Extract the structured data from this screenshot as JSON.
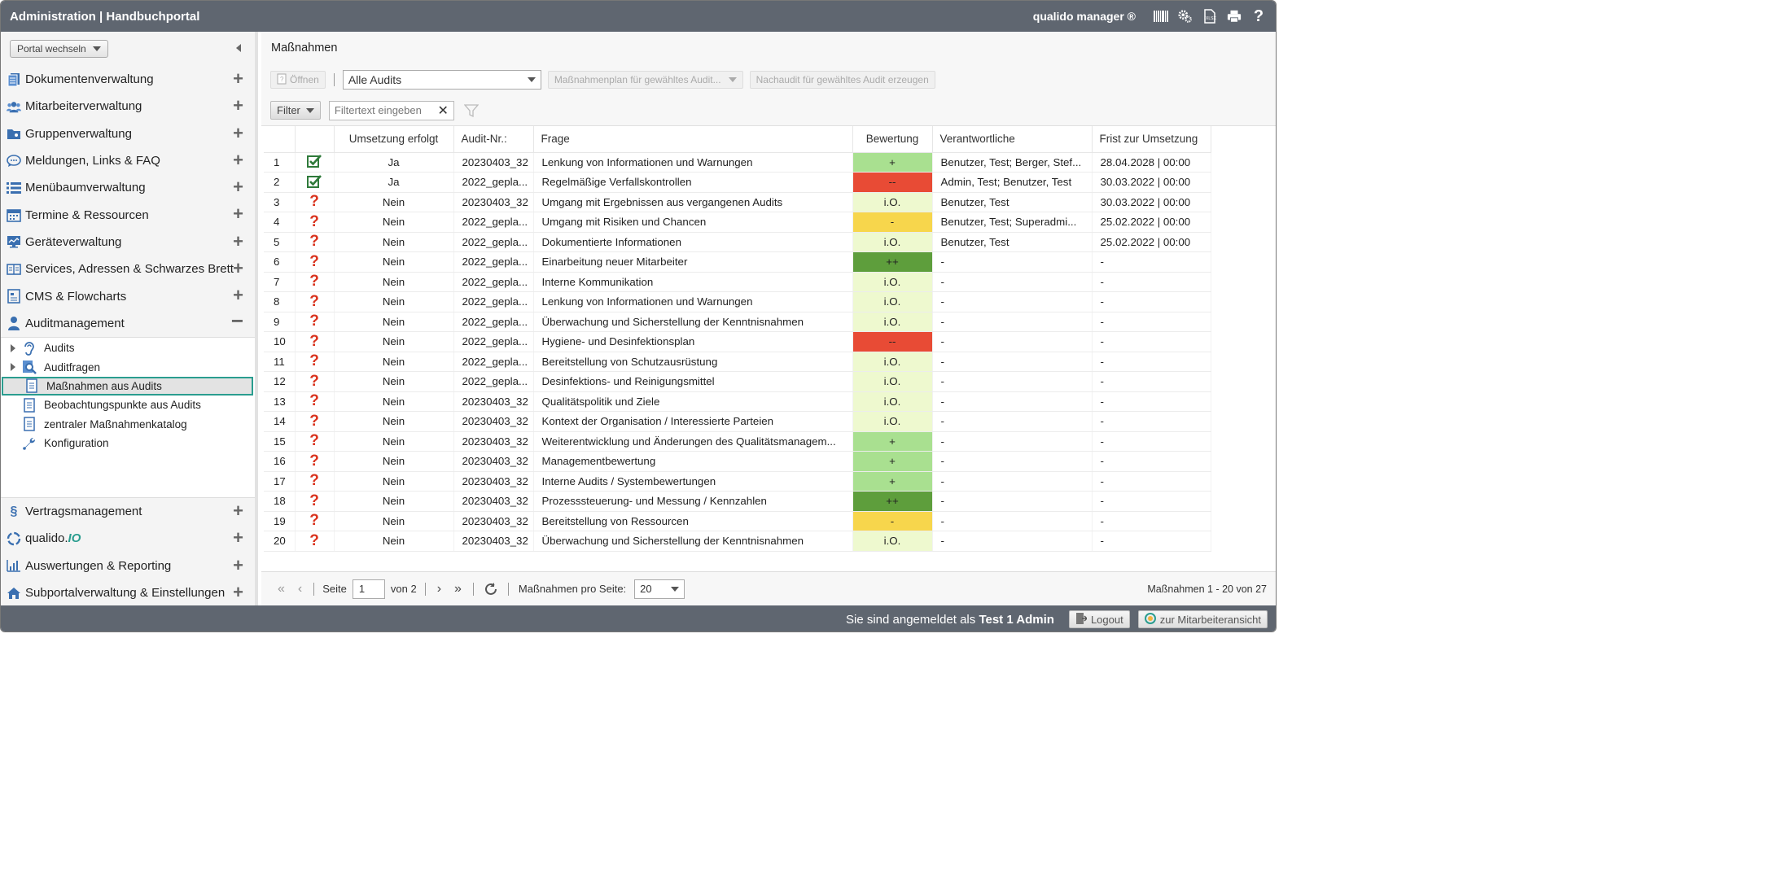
{
  "topbar": {
    "title": "Administration | Handbuchportal",
    "product": "qualido manager ®"
  },
  "sidebar": {
    "portal_switch": "Portal wechseln",
    "items_top": [
      {
        "label": "Dokumentenverwaltung"
      },
      {
        "label": "Mitarbeiterverwaltung"
      },
      {
        "label": "Gruppenverwaltung"
      },
      {
        "label": "Meldungen, Links & FAQ"
      },
      {
        "label": "Menübaumverwaltung"
      },
      {
        "label": "Termine & Ressourcen"
      },
      {
        "label": "Geräteverwaltung"
      },
      {
        "label": "Services, Adressen & Schwarzes Brett"
      },
      {
        "label": "CMS & Flowcharts"
      },
      {
        "label": "Auditmanagement"
      }
    ],
    "audit_sub": [
      {
        "label": "Audits"
      },
      {
        "label": "Auditfragen"
      },
      {
        "label": "Maßnahmen aus Audits"
      },
      {
        "label": "Beobachtungspunkte aus Audits"
      },
      {
        "label": "zentraler Maßnahmenkatalog"
      },
      {
        "label": "Konfiguration"
      }
    ],
    "items_bottom": [
      {
        "label": "Vertragsmanagement"
      },
      {
        "label": "qualido."
      },
      {
        "label": "Auswertungen & Reporting"
      },
      {
        "label": "Subportalverwaltung & Einstellungen"
      }
    ],
    "qualido_io": "IO"
  },
  "main": {
    "title": "Maßnahmen",
    "toolbar": {
      "open": "Öffnen",
      "audit_select": "Alle Audits",
      "plan_btn": "Maßnahmenplan für gewähltes Audit...",
      "nachaudit_btn": "Nachaudit für gewähltes Audit erzeugen"
    },
    "filter": {
      "label": "Filter",
      "placeholder": "Filtertext eingeben"
    },
    "columns": [
      "",
      "",
      "Umsetzung erfolgt",
      "Audit-Nr.:",
      "Frage",
      "Bewertung",
      "Verantwortliche",
      "Frist zur Umsetzung"
    ],
    "rows": [
      {
        "n": "1",
        "status": "check",
        "umsetzung": "Ja",
        "audit": "20230403_32",
        "frage": "Lenkung von Informationen und Warnungen",
        "bewertung": "+",
        "verantw": "Benutzer, Test; Berger, Stef...",
        "frist": "28.04.2028 | 00:00"
      },
      {
        "n": "2",
        "status": "check",
        "umsetzung": "Ja",
        "audit": "2022_gepla...",
        "frage": "Regelmäßige Verfallskontrollen",
        "bewertung": "--",
        "verantw": "Admin, Test; Benutzer, Test",
        "frist": "30.03.2022 | 00:00"
      },
      {
        "n": "3",
        "status": "question",
        "umsetzung": "Nein",
        "audit": "20230403_32",
        "frage": "Umgang mit Ergebnissen aus vergangenen Audits",
        "bewertung": "i.O.",
        "verantw": "Benutzer, Test",
        "frist": "30.03.2022 | 00:00"
      },
      {
        "n": "4",
        "status": "question",
        "umsetzung": "Nein",
        "audit": "2022_gepla...",
        "frage": "Umgang mit Risiken und Chancen",
        "bewertung": "-",
        "verantw": "Benutzer, Test; Superadmi...",
        "frist": "25.02.2022 | 00:00"
      },
      {
        "n": "5",
        "status": "question",
        "umsetzung": "Nein",
        "audit": "2022_gepla...",
        "frage": "Dokumentierte Informationen",
        "bewertung": "i.O.",
        "verantw": "Benutzer, Test",
        "frist": "25.02.2022 | 00:00"
      },
      {
        "n": "6",
        "status": "question",
        "umsetzung": "Nein",
        "audit": "2022_gepla...",
        "frage": "Einarbeitung neuer Mitarbeiter",
        "bewertung": "++",
        "verantw": "-",
        "frist": "-"
      },
      {
        "n": "7",
        "status": "question",
        "umsetzung": "Nein",
        "audit": "2022_gepla...",
        "frage": "Interne Kommunikation",
        "bewertung": "i.O.",
        "verantw": "-",
        "frist": "-"
      },
      {
        "n": "8",
        "status": "question",
        "umsetzung": "Nein",
        "audit": "2022_gepla...",
        "frage": "Lenkung von Informationen und Warnungen",
        "bewertung": "i.O.",
        "verantw": "-",
        "frist": "-"
      },
      {
        "n": "9",
        "status": "question",
        "umsetzung": "Nein",
        "audit": "2022_gepla...",
        "frage": "Überwachung und Sicherstellung der Kenntnisnahmen",
        "bewertung": "i.O.",
        "verantw": "-",
        "frist": "-"
      },
      {
        "n": "10",
        "status": "question",
        "umsetzung": "Nein",
        "audit": "2022_gepla...",
        "frage": "Hygiene- und Desinfektionsplan",
        "bewertung": "--",
        "verantw": "-",
        "frist": "-"
      },
      {
        "n": "11",
        "status": "question",
        "umsetzung": "Nein",
        "audit": "2022_gepla...",
        "frage": "Bereitstellung von Schutzausrüstung",
        "bewertung": "i.O.",
        "verantw": "-",
        "frist": "-"
      },
      {
        "n": "12",
        "status": "question",
        "umsetzung": "Nein",
        "audit": "2022_gepla...",
        "frage": "Desinfektions- und Reinigungsmittel",
        "bewertung": "i.O.",
        "verantw": "-",
        "frist": "-"
      },
      {
        "n": "13",
        "status": "question",
        "umsetzung": "Nein",
        "audit": "20230403_32",
        "frage": "Qualitätspolitik und Ziele",
        "bewertung": "i.O.",
        "verantw": "-",
        "frist": "-"
      },
      {
        "n": "14",
        "status": "question",
        "umsetzung": "Nein",
        "audit": "20230403_32",
        "frage": "Kontext der Organisation / Interessierte Parteien",
        "bewertung": "i.O.",
        "verantw": "-",
        "frist": "-"
      },
      {
        "n": "15",
        "status": "question",
        "umsetzung": "Nein",
        "audit": "20230403_32",
        "frage": "Weiterentwicklung und Änderungen des Qualitätsmanagem...",
        "bewertung": "+",
        "verantw": "-",
        "frist": "-"
      },
      {
        "n": "16",
        "status": "question",
        "umsetzung": "Nein",
        "audit": "20230403_32",
        "frage": "Managementbewertung",
        "bewertung": "+",
        "verantw": "-",
        "frist": "-"
      },
      {
        "n": "17",
        "status": "question",
        "umsetzung": "Nein",
        "audit": "20230403_32",
        "frage": "Interne Audits / Systembewertungen",
        "bewertung": "+",
        "verantw": "-",
        "frist": "-"
      },
      {
        "n": "18",
        "status": "question",
        "umsetzung": "Nein",
        "audit": "20230403_32",
        "frage": "Prozesssteuerung- und Messung / Kennzahlen",
        "bewertung": "++",
        "verantw": "-",
        "frist": "-"
      },
      {
        "n": "19",
        "status": "question",
        "umsetzung": "Nein",
        "audit": "20230403_32",
        "frage": "Bereitstellung von Ressourcen",
        "bewertung": "-",
        "verantw": "-",
        "frist": "-"
      },
      {
        "n": "20",
        "status": "question",
        "umsetzung": "Nein",
        "audit": "20230403_32",
        "frage": "Überwachung und Sicherstellung der Kenntnisnahmen",
        "bewertung": "i.O.",
        "verantw": "-",
        "frist": "-"
      }
    ],
    "pager": {
      "seite": "Seite",
      "page": "1",
      "von": "von 2",
      "per_page_label": "Maßnahmen pro Seite:",
      "per_page": "20",
      "range": "Maßnahmen 1 - 20 von 27"
    }
  },
  "statusbar": {
    "logged_in_prefix": "Sie sind angemeldet als",
    "user": "Test 1 Admin",
    "logout": "Logout",
    "employee_view": "zur Mitarbeiteransicht"
  },
  "colors": {
    "topbar": "#5f6670",
    "plus": "#a9e090",
    "plusplus": "#5e9e3c",
    "minus": "#f7d64c",
    "minusminus": "#e84b35",
    "io": "#eef9cf",
    "accent": "#2a9d8f",
    "icon_blue": "#3a6fb0"
  }
}
